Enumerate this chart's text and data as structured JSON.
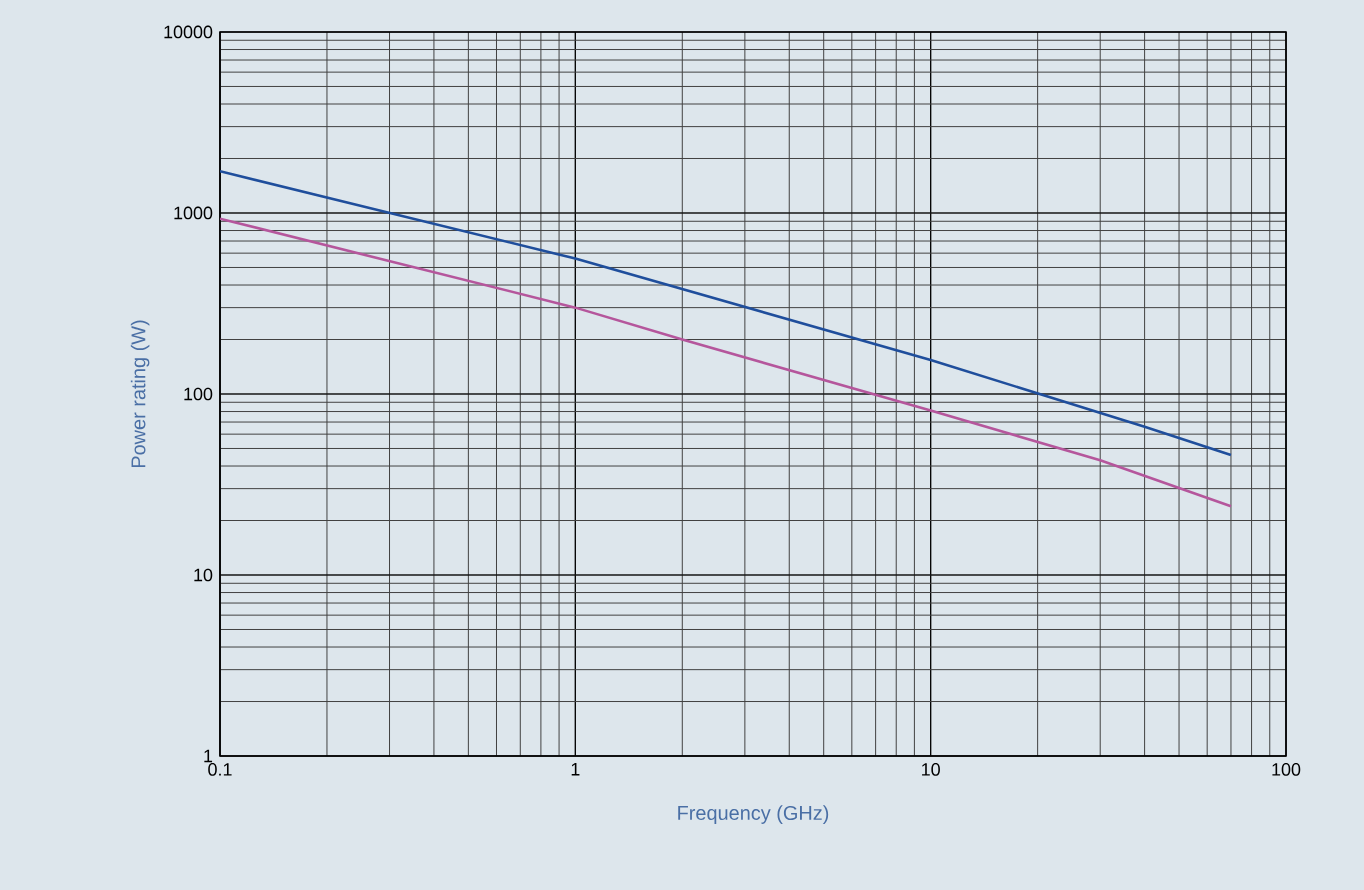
{
  "chart_data": {
    "type": "line",
    "xlabel": "Frequency (GHz)",
    "ylabel": "Power rating (W)",
    "log": "xy",
    "xlim": [
      0.1,
      100
    ],
    "ylim": [
      1,
      10000
    ],
    "xticks": [
      0.1,
      1,
      10,
      100
    ],
    "yticks": [
      1,
      10,
      100,
      1000,
      10000
    ],
    "grid": true,
    "marker": "none",
    "line_style": "solid",
    "series": [
      {
        "color": "#1f4e9c",
        "x": [
          0.1,
          1,
          10,
          40,
          70
        ],
        "values": [
          1700,
          560,
          154,
          66,
          46
        ]
      },
      {
        "color": "#b5569c",
        "x": [
          0.1,
          1,
          2,
          10,
          30,
          70
        ],
        "values": [
          930,
          300,
          200,
          81,
          43,
          24
        ]
      }
    ]
  }
}
